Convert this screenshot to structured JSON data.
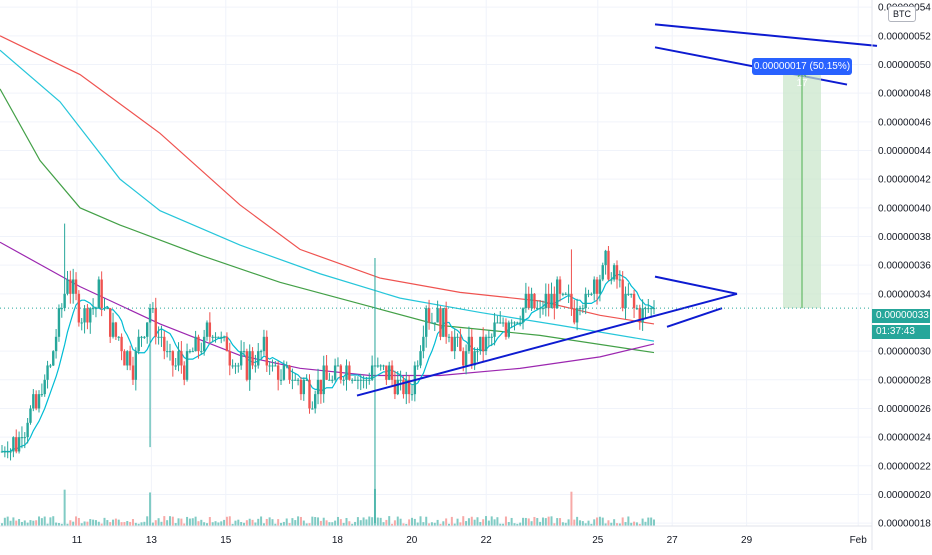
{
  "header": {
    "currency": "BTC"
  },
  "price_tag": {
    "value": "0.00000033",
    "countdown": "01:37:43",
    "hidden_partial": "0."
  },
  "measure": {
    "label": "0.00000017 (50.15%) 17",
    "from": 3.3e-07,
    "to": 4.95e-07
  },
  "colors": {
    "up": "#26a69a",
    "down": "#ef5350",
    "ma_red": "#ef5350",
    "ma_teal": "#26c6da",
    "ma_green": "#43a047",
    "ma_purple": "#9c27b0",
    "ma_fast": "#00bcd4",
    "trendline": "#0d1bd1",
    "measure_fill": "#c8e6c9",
    "measure_line": "#4caf50",
    "grid": "#f0f3fa",
    "price_line": "#26a69a"
  },
  "chart_data": {
    "type": "candlestick",
    "symbol_currency": "BTC",
    "ylim": [
      1.8e-07,
      5.45e-07
    ],
    "y_ticks": [
      "0.00000054",
      "0.00000052",
      "0.00000050",
      "0.00000048",
      "0.00000046",
      "0.00000044",
      "0.00000042",
      "0.00000040",
      "0.00000038",
      "0.00000036",
      "0.00000034",
      "0.00000030",
      "0.00000028",
      "0.00000026",
      "0.00000024",
      "0.00000022",
      "0.00000020",
      "0.00000018"
    ],
    "x_ticks": [
      "11",
      "13",
      "15",
      "18",
      "20",
      "22",
      "25",
      "27",
      "29",
      "Feb"
    ],
    "last_price": 3.3e-07,
    "closes": [
      2.3e-07,
      2.4e-07,
      2.6e-07,
      2.9e-07,
      3.5e-07,
      3.2e-07,
      3.4e-07,
      3.1e-07,
      2.9e-07,
      3.3e-07,
      3e-07,
      2.9e-07,
      3e-07,
      3.2e-07,
      3e-07,
      2.9e-07,
      3e-07,
      2.8e-07,
      2.8e-07,
      2.7e-07,
      2.8e-07,
      2.9e-07,
      2.8e-07,
      2.9e-07,
      2.8e-07,
      2.7e-07,
      3.3e-07,
      3.2e-07,
      3e-07,
      3e-07,
      3.1e-07,
      3.2e-07,
      3.3e-07,
      3.3e-07,
      3.4e-07,
      3.3e-07,
      3.4e-07,
      3.6e-07,
      3.4e-07,
      3.3e-07,
      3.3e-07
    ],
    "annotations": {
      "triangle_upper": [
        [
          18.2,
          2.67e-07
        ],
        [
          29.2,
          3.41e-07
        ]
      ],
      "triangle_lower": [
        [
          18.2,
          2.67e-07
        ],
        [
          29.2,
          3.41e-07
        ]
      ],
      "channel_upper": [
        [
          28.5,
          5.27e-07
        ],
        [
          34.5,
          5.12e-07
        ]
      ],
      "channel_lower": [
        [
          28.5,
          5.11e-07
        ],
        [
          34.0,
          4.85e-07
        ]
      ]
    }
  }
}
